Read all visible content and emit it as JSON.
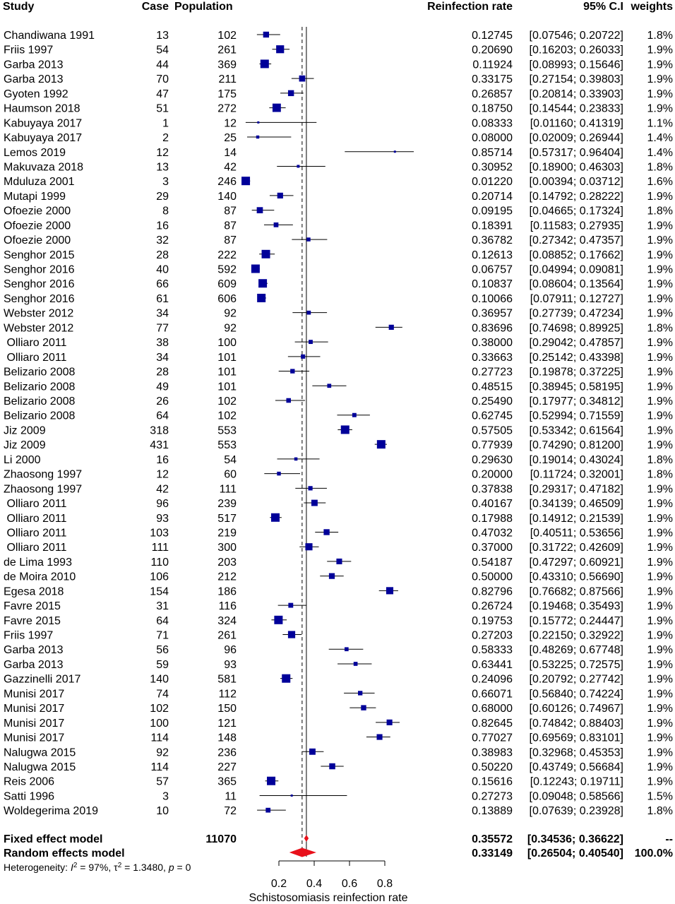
{
  "chart_data": {
    "type": "forest",
    "headers": {
      "study": "Study",
      "case": "Case",
      "population": "Population",
      "rate": "Reinfection rate",
      "ci": "95% C.I",
      "weights": "weights"
    },
    "xlabel": "Schistosomiasis reinfection rate",
    "xlim": [
      0.2,
      0.8
    ],
    "xticks": [
      "0.2",
      "0.4",
      "0.6",
      "0.8"
    ],
    "studies": [
      {
        "study": "Chandiwana 1991",
        "case": "13",
        "population": "102",
        "rate": "0.12745",
        "ci": "[0.07546; 0.20722]",
        "weight": "1.8%",
        "est": 0.12745,
        "lo": 0.07546,
        "hi": 0.20722
      },
      {
        "study": "Friis 1997",
        "case": "54",
        "population": "261",
        "rate": "0.20690",
        "ci": "[0.16203; 0.26033]",
        "weight": "1.9%",
        "est": 0.2069,
        "lo": 0.16203,
        "hi": 0.26033
      },
      {
        "study": "Garba 2013",
        "case": "44",
        "population": "369",
        "rate": "0.11924",
        "ci": "[0.08993; 0.15646]",
        "weight": "1.9%",
        "est": 0.11924,
        "lo": 0.08993,
        "hi": 0.15646
      },
      {
        "study": "Garba 2013",
        "case": "70",
        "population": "211",
        "rate": "0.33175",
        "ci": "[0.27154; 0.39803]",
        "weight": "1.9%",
        "est": 0.33175,
        "lo": 0.27154,
        "hi": 0.39803
      },
      {
        "study": "Gyoten 1992",
        "case": "47",
        "population": "175",
        "rate": "0.26857",
        "ci": "[0.20814; 0.33903]",
        "weight": "1.9%",
        "est": 0.26857,
        "lo": 0.20814,
        "hi": 0.33903
      },
      {
        "study": "Haumson 2018",
        "case": "51",
        "population": "272",
        "rate": "0.18750",
        "ci": "[0.14544; 0.23833]",
        "weight": "1.9%",
        "est": 0.1875,
        "lo": 0.14544,
        "hi": 0.23833
      },
      {
        "study": "Kabuyaya 2017",
        "case": "1",
        "population": "12",
        "rate": "0.08333",
        "ci": "[0.01160; 0.41319]",
        "weight": "1.1%",
        "est": 0.08333,
        "lo": 0.0116,
        "hi": 0.41319
      },
      {
        "study": "Kabuyaya 2017",
        "case": "2",
        "population": "25",
        "rate": "0.08000",
        "ci": "[0.02009; 0.26944]",
        "weight": "1.4%",
        "est": 0.08,
        "lo": 0.02009,
        "hi": 0.26944
      },
      {
        "study": "Lemos 2019",
        "case": "12",
        "population": "14",
        "rate": "0.85714",
        "ci": "[0.57317; 0.96404]",
        "weight": "1.4%",
        "est": 0.85714,
        "lo": 0.57317,
        "hi": 0.96404
      },
      {
        "study": "Makuvaza 2018",
        "case": "13",
        "population": "42",
        "rate": "0.30952",
        "ci": "[0.18900; 0.46303]",
        "weight": "1.8%",
        "est": 0.30952,
        "lo": 0.189,
        "hi": 0.46303
      },
      {
        "study": "Mduluza 2001",
        "case": "3",
        "population": "246",
        "rate": "0.01220",
        "ci": "[0.00394; 0.03712]",
        "weight": "1.6%",
        "est": 0.0122,
        "lo": 0.00394,
        "hi": 0.03712
      },
      {
        "study": "Mutapi 1999",
        "case": "29",
        "population": "140",
        "rate": "0.20714",
        "ci": "[0.14792; 0.28222]",
        "weight": "1.9%",
        "est": 0.20714,
        "lo": 0.14792,
        "hi": 0.28222
      },
      {
        "study": "Ofoezie 2000",
        "case": "8",
        "population": "87",
        "rate": "0.09195",
        "ci": "[0.04665; 0.17324]",
        "weight": "1.8%",
        "est": 0.09195,
        "lo": 0.04665,
        "hi": 0.17324
      },
      {
        "study": "Ofoezie 2000",
        "case": "16",
        "population": "87",
        "rate": "0.18391",
        "ci": "[0.11583; 0.27935]",
        "weight": "1.9%",
        "est": 0.18391,
        "lo": 0.11583,
        "hi": 0.27935
      },
      {
        "study": "Ofoezie 2000",
        "case": "32",
        "population": "87",
        "rate": "0.36782",
        "ci": "[0.27342; 0.47357]",
        "weight": "1.9%",
        "est": 0.36782,
        "lo": 0.27342,
        "hi": 0.47357
      },
      {
        "study": "Senghor 2015",
        "case": "28",
        "population": "222",
        "rate": "0.12613",
        "ci": "[0.08852; 0.17662]",
        "weight": "1.9%",
        "est": 0.12613,
        "lo": 0.08852,
        "hi": 0.17662
      },
      {
        "study": "Senghor 2016",
        "case": "40",
        "population": "592",
        "rate": "0.06757",
        "ci": "[0.04994; 0.09081]",
        "weight": "1.9%",
        "est": 0.06757,
        "lo": 0.04994,
        "hi": 0.09081
      },
      {
        "study": "Senghor 2016",
        "case": "66",
        "population": "609",
        "rate": "0.10837",
        "ci": "[0.08604; 0.13564]",
        "weight": "1.9%",
        "est": 0.10837,
        "lo": 0.08604,
        "hi": 0.13564
      },
      {
        "study": "Senghor 2016",
        "case": "61",
        "population": "606",
        "rate": "0.10066",
        "ci": "[0.07911; 0.12727]",
        "weight": "1.9%",
        "est": 0.10066,
        "lo": 0.07911,
        "hi": 0.12727
      },
      {
        "study": "Webster 2012",
        "case": "34",
        "population": "92",
        "rate": "0.36957",
        "ci": "[0.27739; 0.47234]",
        "weight": "1.9%",
        "est": 0.36957,
        "lo": 0.27739,
        "hi": 0.47234
      },
      {
        "study": "Webster 2012",
        "case": "77",
        "population": "92",
        "rate": "0.83696",
        "ci": "[0.74698; 0.89925]",
        "weight": "1.8%",
        "est": 0.83696,
        "lo": 0.74698,
        "hi": 0.89925
      },
      {
        "study": " Olliaro 2011",
        "case": "38",
        "population": "100",
        "rate": "0.38000",
        "ci": "[0.29042; 0.47857]",
        "weight": "1.9%",
        "est": 0.38,
        "lo": 0.29042,
        "hi": 0.47857
      },
      {
        "study": " Olliaro 2011",
        "case": "34",
        "population": "101",
        "rate": "0.33663",
        "ci": "[0.25142; 0.43398]",
        "weight": "1.9%",
        "est": 0.33663,
        "lo": 0.25142,
        "hi": 0.43398
      },
      {
        "study": "Belizario 2008",
        "case": "28",
        "population": "101",
        "rate": "0.27723",
        "ci": "[0.19878; 0.37225]",
        "weight": "1.9%",
        "est": 0.27723,
        "lo": 0.19878,
        "hi": 0.37225
      },
      {
        "study": "Belizario 2008",
        "case": "49",
        "population": "101",
        "rate": "0.48515",
        "ci": "[0.38945; 0.58195]",
        "weight": "1.9%",
        "est": 0.48515,
        "lo": 0.38945,
        "hi": 0.58195
      },
      {
        "study": "Belizario 2008",
        "case": "26",
        "population": "102",
        "rate": "0.25490",
        "ci": "[0.17977; 0.34812]",
        "weight": "1.9%",
        "est": 0.2549,
        "lo": 0.17977,
        "hi": 0.34812
      },
      {
        "study": "Belizario 2008",
        "case": "64",
        "population": "102",
        "rate": "0.62745",
        "ci": "[0.52994; 0.71559]",
        "weight": "1.9%",
        "est": 0.62745,
        "lo": 0.52994,
        "hi": 0.71559
      },
      {
        "study": "Jiz 2009",
        "case": "318",
        "population": "553",
        "rate": "0.57505",
        "ci": "[0.53342; 0.61564]",
        "weight": "1.9%",
        "est": 0.57505,
        "lo": 0.53342,
        "hi": 0.61564
      },
      {
        "study": "Jiz 2009",
        "case": "431",
        "population": "553",
        "rate": "0.77939",
        "ci": "[0.74290; 0.81200]",
        "weight": "1.9%",
        "est": 0.77939,
        "lo": 0.7429,
        "hi": 0.812
      },
      {
        "study": "Li 2000",
        "case": "16",
        "population": "54",
        "rate": "0.29630",
        "ci": "[0.19014; 0.43024]",
        "weight": "1.8%",
        "est": 0.2963,
        "lo": 0.19014,
        "hi": 0.43024
      },
      {
        "study": "Zhaosong 1997",
        "case": "12",
        "population": "60",
        "rate": "0.20000",
        "ci": "[0.11724; 0.32001]",
        "weight": "1.8%",
        "est": 0.2,
        "lo": 0.11724,
        "hi": 0.32001
      },
      {
        "study": "Zhaosong 1997",
        "case": "42",
        "population": "111",
        "rate": "0.37838",
        "ci": "[0.29317; 0.47182]",
        "weight": "1.9%",
        "est": 0.37838,
        "lo": 0.29317,
        "hi": 0.47182
      },
      {
        "study": " Olliaro 2011",
        "case": "96",
        "population": "239",
        "rate": "0.40167",
        "ci": "[0.34139; 0.46509]",
        "weight": "1.9%",
        "est": 0.40167,
        "lo": 0.34139,
        "hi": 0.46509
      },
      {
        "study": " Olliaro 2011",
        "case": "93",
        "population": "517",
        "rate": "0.17988",
        "ci": "[0.14912; 0.21539]",
        "weight": "1.9%",
        "est": 0.17988,
        "lo": 0.14912,
        "hi": 0.21539
      },
      {
        "study": " Olliaro 2011",
        "case": "103",
        "population": "219",
        "rate": "0.47032",
        "ci": "[0.40511; 0.53656]",
        "weight": "1.9%",
        "est": 0.47032,
        "lo": 0.40511,
        "hi": 0.53656
      },
      {
        "study": " Olliaro 2011",
        "case": "111",
        "population": "300",
        "rate": "0.37000",
        "ci": "[0.31722; 0.42609]",
        "weight": "1.9%",
        "est": 0.37,
        "lo": 0.31722,
        "hi": 0.42609
      },
      {
        "study": "de Lima 1993",
        "case": "110",
        "population": "203",
        "rate": "0.54187",
        "ci": "[0.47297; 0.60921]",
        "weight": "1.9%",
        "est": 0.54187,
        "lo": 0.47297,
        "hi": 0.60921
      },
      {
        "study": "de Moira 2010",
        "case": "106",
        "population": "212",
        "rate": "0.50000",
        "ci": "[0.43310; 0.56690]",
        "weight": "1.9%",
        "est": 0.5,
        "lo": 0.4331,
        "hi": 0.5669
      },
      {
        "study": "Egesa 2018",
        "case": "154",
        "population": "186",
        "rate": "0.82796",
        "ci": "[0.76682; 0.87566]",
        "weight": "1.9%",
        "est": 0.82796,
        "lo": 0.76682,
        "hi": 0.87566
      },
      {
        "study": "Favre 2015",
        "case": "31",
        "population": "116",
        "rate": "0.26724",
        "ci": "[0.19468; 0.35493]",
        "weight": "1.9%",
        "est": 0.26724,
        "lo": 0.19468,
        "hi": 0.35493
      },
      {
        "study": "Favre 2015",
        "case": "64",
        "population": "324",
        "rate": "0.19753",
        "ci": "[0.15772; 0.24447]",
        "weight": "1.9%",
        "est": 0.19753,
        "lo": 0.15772,
        "hi": 0.24447
      },
      {
        "study": "Friis 1997",
        "case": "71",
        "population": "261",
        "rate": "0.27203",
        "ci": "[0.22150; 0.32922]",
        "weight": "1.9%",
        "est": 0.27203,
        "lo": 0.2215,
        "hi": 0.32922
      },
      {
        "study": "Garba 2013",
        "case": "56",
        "population": "96",
        "rate": "0.58333",
        "ci": "[0.48269; 0.67748]",
        "weight": "1.9%",
        "est": 0.58333,
        "lo": 0.48269,
        "hi": 0.67748
      },
      {
        "study": "Garba 2013",
        "case": "59",
        "population": "93",
        "rate": "0.63441",
        "ci": "[0.53225; 0.72575]",
        "weight": "1.9%",
        "est": 0.63441,
        "lo": 0.53225,
        "hi": 0.72575
      },
      {
        "study": "Gazzinelli 2017",
        "case": "140",
        "population": "581",
        "rate": "0.24096",
        "ci": "[0.20792; 0.27742]",
        "weight": "1.9%",
        "est": 0.24096,
        "lo": 0.20792,
        "hi": 0.27742
      },
      {
        "study": "Munisi 2017",
        "case": "74",
        "population": "112",
        "rate": "0.66071",
        "ci": "[0.56840; 0.74224]",
        "weight": "1.9%",
        "est": 0.66071,
        "lo": 0.5684,
        "hi": 0.74224
      },
      {
        "study": "Munisi 2017",
        "case": "102",
        "population": "150",
        "rate": "0.68000",
        "ci": "[0.60126; 0.74967]",
        "weight": "1.9%",
        "est": 0.68,
        "lo": 0.60126,
        "hi": 0.74967
      },
      {
        "study": "Munisi 2017",
        "case": "100",
        "population": "121",
        "rate": "0.82645",
        "ci": "[0.74842; 0.88403]",
        "weight": "1.9%",
        "est": 0.82645,
        "lo": 0.74842,
        "hi": 0.88403
      },
      {
        "study": "Munisi 2017",
        "case": "114",
        "population": "148",
        "rate": "0.77027",
        "ci": "[0.69569; 0.83101]",
        "weight": "1.9%",
        "est": 0.77027,
        "lo": 0.69569,
        "hi": 0.83101
      },
      {
        "study": "Nalugwa 2015",
        "case": "92",
        "population": "236",
        "rate": "0.38983",
        "ci": "[0.32968; 0.45353]",
        "weight": "1.9%",
        "est": 0.38983,
        "lo": 0.32968,
        "hi": 0.45353
      },
      {
        "study": "Nalugwa 2015",
        "case": "114",
        "population": "227",
        "rate": "0.50220",
        "ci": "[0.43749; 0.56684]",
        "weight": "1.9%",
        "est": 0.5022,
        "lo": 0.43749,
        "hi": 0.56684
      },
      {
        "study": "Reis 2006",
        "case": "57",
        "population": "365",
        "rate": "0.15616",
        "ci": "[0.12243; 0.19711]",
        "weight": "1.9%",
        "est": 0.15616,
        "lo": 0.12243,
        "hi": 0.19711
      },
      {
        "study": "Satti 1996",
        "case": "3",
        "population": "11",
        "rate": "0.27273",
        "ci": "[0.09048; 0.58566]",
        "weight": "1.5%",
        "est": 0.27273,
        "lo": 0.09048,
        "hi": 0.58566
      },
      {
        "study": "Woldegerima 2019",
        "case": "10",
        "population": "72",
        "rate": "0.13889",
        "ci": "[0.07639; 0.23928]",
        "weight": "1.8%",
        "est": 0.13889,
        "lo": 0.07639,
        "hi": 0.23928
      }
    ],
    "fixed": {
      "label": "Fixed effect model",
      "population": "11070",
      "rate": "0.35572",
      "ci": "[0.34536; 0.36622]",
      "weight": "--",
      "est": 0.35572,
      "lo": 0.34536,
      "hi": 0.36622
    },
    "random": {
      "label": "Random effects model",
      "rate": "0.33149",
      "ci": "[0.26504; 0.40540]",
      "weight": "100.0%",
      "est": 0.33149,
      "lo": 0.26504,
      "hi": 0.4054
    },
    "heterogeneity": {
      "prefix": "Heterogeneity: ",
      "i2_symbol": "I",
      "i2_value": " = 97%, ",
      "tau_symbol": "τ",
      "tau_value": " = 1.3480, ",
      "p_symbol": "p",
      "p_value": " = 0"
    },
    "colors": {
      "square": "#000099",
      "summary": "#e8101b",
      "line": "#000000"
    }
  }
}
